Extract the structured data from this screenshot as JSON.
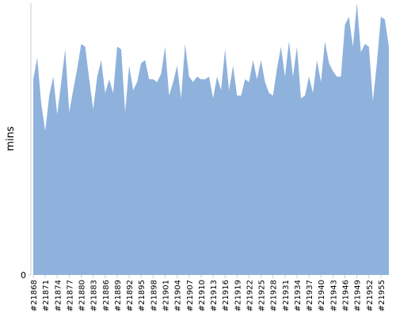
{
  "chart_data": {
    "type": "area",
    "y_label": "mins",
    "color": "#8fb2dc",
    "categories": [
      "#21868",
      null,
      null,
      "#21871",
      null,
      null,
      "#21874",
      null,
      null,
      "#21877",
      null,
      null,
      "#21880",
      null,
      null,
      "#21883",
      null,
      null,
      "#21886",
      null,
      null,
      "#21889",
      null,
      null,
      "#21892",
      null,
      null,
      "#21895",
      null,
      null,
      "#21898",
      null,
      null,
      "#21901",
      null,
      null,
      "#21904",
      null,
      null,
      "#21907",
      null,
      null,
      "#21910",
      null,
      null,
      "#21913",
      null,
      null,
      "#21916",
      null,
      null,
      "#21919",
      null,
      null,
      "#21922",
      null,
      null,
      "#21925",
      null,
      null,
      "#21928",
      null,
      null,
      "#21931",
      null,
      null,
      "#21934",
      null,
      null,
      "#21937",
      null,
      null,
      "#21940",
      null,
      null,
      "#21943",
      null,
      null,
      "#21946",
      null,
      null,
      "#21949",
      null,
      null,
      "#21952",
      null,
      null,
      "#21955",
      null,
      null
    ],
    "values": [
      72,
      80,
      63,
      53,
      66,
      73,
      59,
      71,
      83,
      60,
      68,
      76,
      85,
      84,
      72,
      61,
      73,
      79,
      67,
      72,
      67,
      84,
      83,
      60,
      77,
      68,
      71,
      78,
      79,
      72,
      72,
      71,
      74,
      84,
      66,
      71,
      77,
      65,
      85,
      73,
      71,
      73,
      72,
      72,
      73,
      65,
      73,
      68,
      83,
      68,
      77,
      66,
      66,
      72,
      71,
      79,
      72,
      79,
      71,
      67,
      66,
      76,
      84,
      73,
      86,
      73,
      84,
      65,
      66,
      73,
      67,
      79,
      71,
      86,
      78,
      75,
      73,
      73,
      92,
      95,
      84,
      100,
      82,
      85,
      84,
      64,
      78,
      95,
      94,
      84
    ],
    "ylim": [
      0,
      100
    ],
    "yticks": [
      0
    ]
  }
}
